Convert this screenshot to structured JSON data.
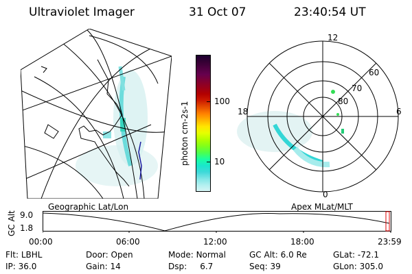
{
  "header": {
    "instrument": "Ultraviolet Imager",
    "date": "31 Oct 07",
    "time": "23:40:54 UT"
  },
  "colorbar": {
    "unit_label": "photon cm-2s-1",
    "tick_labels": [
      "100",
      "10"
    ],
    "colors": [
      "#1a0030",
      "#330033",
      "#4d0040",
      "#66004d",
      "#800033",
      "#99001a",
      "#b30000",
      "#cc1a00",
      "#e64d00",
      "#ff8000",
      "#ffb300",
      "#ffe600",
      "#e6ff00",
      "#b3ff00",
      "#80ff1a",
      "#4dff4d",
      "#1affa0",
      "#1ae6cc",
      "#40d9d9",
      "#80e6e6",
      "#b3f0f0",
      "#d9f5f5"
    ]
  },
  "maps": {
    "left_caption": "Geographic Lat/Lon",
    "right_caption": "Apex MLat/MLT",
    "polar_labels": {
      "top": "12",
      "left": "18",
      "right": "6",
      "bottom": "0",
      "rings": [
        "60",
        "70",
        "80"
      ]
    }
  },
  "timeline": {
    "ylabel": "GC Alt",
    "ytick_top": "9.0",
    "ytick_bottom": "1.8",
    "xticks": [
      "00:00",
      "06:00",
      "12:00",
      "18:00",
      "23:59"
    ]
  },
  "status": {
    "row1": [
      {
        "label": "Flt:",
        "value": "LBHL"
      },
      {
        "label": "Door:",
        "value": "Open"
      },
      {
        "label": "Mode:",
        "value": "Normal"
      },
      {
        "label": "GC Alt:",
        "value": "6.0 Re"
      },
      {
        "label": "GLat:",
        "value": "-72.1"
      }
    ],
    "row2": [
      {
        "label": "IP:",
        "value": "36.0"
      },
      {
        "label": "Gain:",
        "value": "14"
      },
      {
        "label": "Dsp:",
        "value": "6.7"
      },
      {
        "label": "Seq:",
        "value": "39"
      },
      {
        "label": "GLon:",
        "value": "305.0"
      }
    ]
  }
}
